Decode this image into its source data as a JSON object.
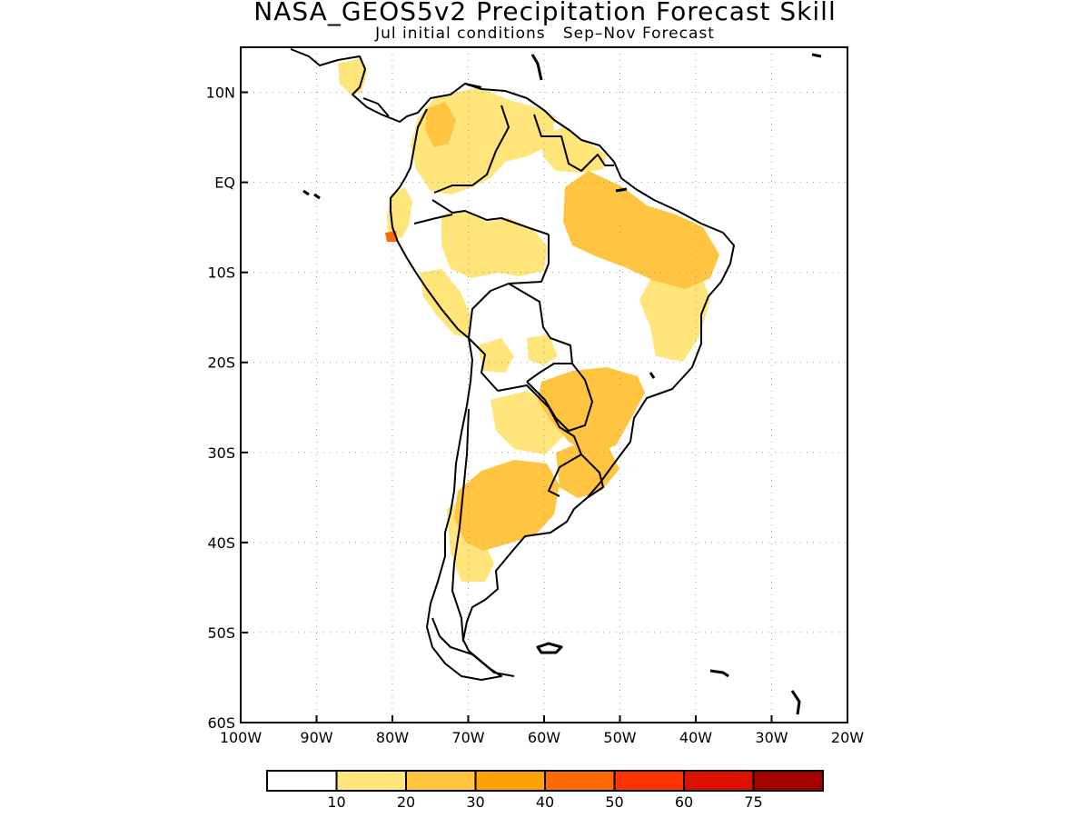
{
  "title": "NASA_GEOS5v2 Precipitation Forecast Skill",
  "subtitle": "Jul initial conditions   Sep–Nov Forecast",
  "map": {
    "lon_range": [
      -100,
      -20
    ],
    "lat_range": [
      -60,
      15
    ],
    "x_ticks": [
      "100W",
      "90W",
      "80W",
      "70W",
      "60W",
      "50W",
      "40W",
      "30W",
      "20W"
    ],
    "y_ticks": [
      "10N",
      "EQ",
      "10S",
      "20S",
      "30S",
      "40S",
      "50S",
      "60S"
    ],
    "x_tick_values": [
      -100,
      -90,
      -80,
      -70,
      -60,
      -50,
      -40,
      -30,
      -20
    ],
    "y_tick_values": [
      10,
      0,
      -10,
      -20,
      -30,
      -40,
      -50,
      -60
    ],
    "gridlines": "dotted",
    "coastline_color": "#000000"
  },
  "colorbar": {
    "colors": [
      "#ffffff",
      "#ffe57a",
      "#ffc440",
      "#ffa100",
      "#ff6a00",
      "#ff3300",
      "#dd1100",
      "#a30000"
    ],
    "labels": [
      "10",
      "20",
      "30",
      "40",
      "50",
      "60",
      "75"
    ]
  },
  "skill_regions": [
    {
      "name": "central-america",
      "level": 1
    },
    {
      "name": "northern-colombia-venezuela",
      "level": 1
    },
    {
      "name": "guianas",
      "level": 1
    },
    {
      "name": "ecuador-peru-coast",
      "level": 1
    },
    {
      "name": "western-amazon",
      "level": 1
    },
    {
      "name": "peru-andes",
      "level": 1
    },
    {
      "name": "ne-brazil",
      "level": 2
    },
    {
      "name": "e-brazil",
      "level": 1
    },
    {
      "name": "se-brazil-paraguay",
      "level": 2
    },
    {
      "name": "uruguay-s-brazil",
      "level": 2
    },
    {
      "name": "central-argentina",
      "level": 2
    },
    {
      "name": "patagonia",
      "level": 1
    },
    {
      "name": "peru-hotspot",
      "level": 4
    }
  ]
}
